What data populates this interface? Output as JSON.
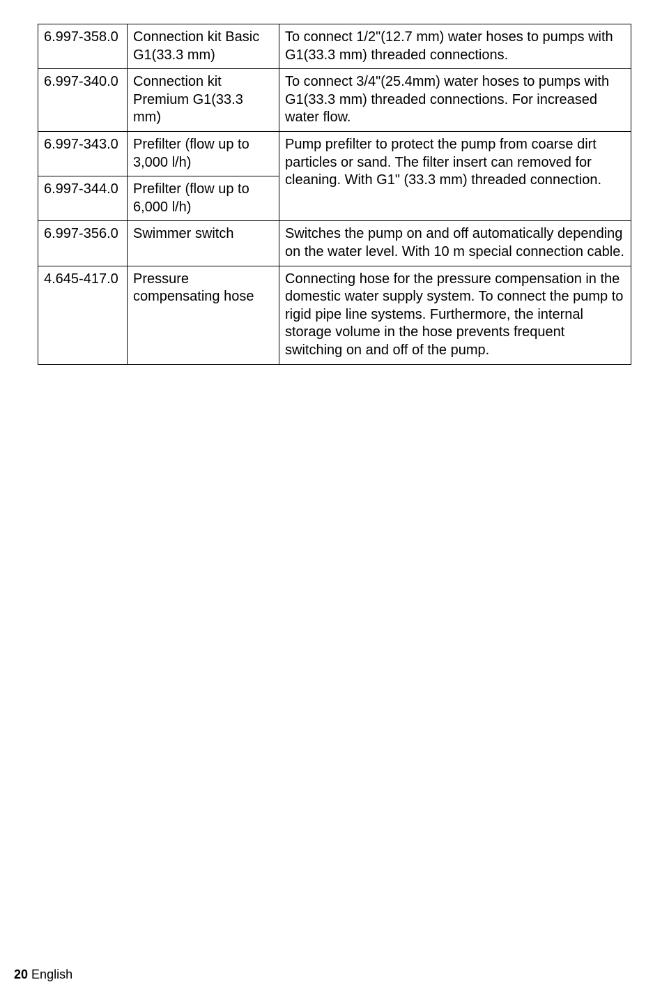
{
  "table": {
    "rows": [
      {
        "code": "6.997-358.0",
        "name": "Connection kit Basic G1(33.3 mm)",
        "desc": "To connect 1/2\"(12.7 mm) water hoses to pumps with G1(33.3 mm) threaded connections."
      },
      {
        "code": "6.997-340.0",
        "name": "Connection kit Premium G1(33.3 mm)",
        "desc": "To connect 3/4\"(25.4mm) water hoses to pumps with G1(33.3 mm) threaded connections. For increased water flow."
      },
      {
        "code": "6.997-343.0",
        "name": "Prefilter (flow up to 3,000 l/h)",
        "desc": "Pump prefilter to protect the pump from coarse dirt particles or sand. The filter insert can removed for cleaning. With G1\" (33.3 mm) threaded connection."
      },
      {
        "code": "6.997-344.0",
        "name": "Prefilter (flow up to 6,000 l/h)"
      },
      {
        "code": "6.997-356.0",
        "name": "Swimmer switch",
        "desc": "Switches the pump on and off automatically depending on the water level. With 10 m special connection cable."
      },
      {
        "code": "4.645-417.0",
        "name": "Pressure compensating hose",
        "desc": "Connecting hose for the pressure compensation in the domestic water supply system. To connect the pump to rigid pipe line systems. Furthermore, the internal storage volume in the hose prevents frequent switching on and off of the pump."
      }
    ]
  },
  "footer": {
    "page": "20",
    "lang": "English"
  }
}
